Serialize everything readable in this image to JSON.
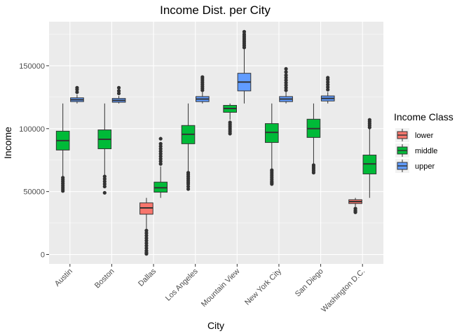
{
  "chart_data": {
    "type": "boxplot",
    "title": "Income Dist. per City",
    "xlabel": "City",
    "ylabel": "Income",
    "ylim": [
      -7500,
      185000
    ],
    "yticks": [
      0,
      50000,
      100000,
      150000
    ],
    "ytick_labels": [
      "0",
      "50000",
      "100000",
      "150000"
    ],
    "grid": true,
    "legend_position": "right",
    "legend_title": "Income Class",
    "categories": [
      "Austin",
      "Boston",
      "Dallas",
      "Los Angeles",
      "Mountain View",
      "New York City",
      "San Diego",
      "Washington D.C."
    ],
    "series": [
      {
        "name": "lower",
        "color": "#F8766D",
        "boxes": [
          null,
          null,
          {
            "min": 20000,
            "q1": 32000,
            "median": 37000,
            "q3": 41000,
            "max": 45000,
            "outliers": [
              19000,
              17000,
              15000,
              13000,
              11000,
              9000,
              7000,
              5000,
              3000,
              1500,
              500
            ]
          },
          null,
          null,
          null,
          null,
          {
            "min": 38000,
            "q1": 40500,
            "median": 42000,
            "q3": 43500,
            "max": 45000,
            "outliers": [
              36500,
              35000,
              34000,
              33500
            ]
          }
        ]
      },
      {
        "name": "middle",
        "color": "#00BA38",
        "boxes": [
          {
            "min": 62000,
            "q1": 83000,
            "median": 90500,
            "q3": 98000,
            "max": 120000,
            "outliers": [
              61000,
              59500,
              58000,
              56500,
              55000,
              53500,
              52000,
              50500
            ]
          },
          {
            "min": 63000,
            "q1": 84000,
            "median": 91500,
            "q3": 99000,
            "max": 120000,
            "outliers": [
              62000,
              60000,
              58000,
              56000,
              54000,
              49000
            ]
          },
          {
            "min": 45000,
            "q1": 49500,
            "median": 53000,
            "q3": 57500,
            "max": 70000,
            "outliers": [
              72000,
              74000,
              76000,
              78000,
              80000,
              82000,
              84000,
              86000,
              88000,
              92000
            ]
          },
          {
            "min": 66000,
            "q1": 88000,
            "median": 95500,
            "q3": 102500,
            "max": 120000,
            "outliers": [
              65000,
              63500,
              62000,
              60500,
              59000,
              57500,
              56000,
              54000,
              52000
            ]
          },
          {
            "min": 107000,
            "q1": 113000,
            "median": 116000,
            "q3": 118500,
            "max": 120000,
            "outliers": [
              105000,
              103500,
              102000,
              100500,
              99000,
              97500,
              96000
            ]
          },
          {
            "min": 68000,
            "q1": 89000,
            "median": 97000,
            "q3": 104000,
            "max": 120000,
            "outliers": [
              67000,
              65500,
              64000,
              62500,
              61000,
              59500,
              58000,
              57000,
              56000
            ]
          },
          {
            "min": 72000,
            "q1": 93000,
            "median": 100000,
            "q3": 107500,
            "max": 120000,
            "outliers": [
              71000,
              69500,
              68000,
              66500,
              65000
            ]
          },
          {
            "min": 45000,
            "q1": 64000,
            "median": 72000,
            "q3": 79000,
            "max": 100000,
            "outliers": [
              101000,
              102500,
              104000,
              105500,
              107000
            ]
          }
        ]
      },
      {
        "name": "upper",
        "color": "#619CFF",
        "boxes": [
          {
            "min": 120000,
            "q1": 121500,
            "median": 123000,
            "q3": 124500,
            "max": 127000,
            "outliers": [
              129000,
              131000,
              132500
            ]
          },
          {
            "min": 120000,
            "q1": 121000,
            "median": 122500,
            "q3": 124000,
            "max": 126000,
            "outliers": [
              128000,
              130000,
              132500
            ]
          },
          null,
          {
            "min": 120000,
            "q1": 121500,
            "median": 123500,
            "q3": 125500,
            "max": 129000,
            "outliers": [
              130500,
              132000,
              133500,
              135000,
              136500,
              138000,
              139500,
              141000
            ]
          },
          {
            "min": 120000,
            "q1": 130000,
            "median": 137000,
            "q3": 144000,
            "max": 163000,
            "outliers": [
              164500,
              166000,
              167500,
              169000,
              170500,
              172000,
              173500,
              175000,
              177000
            ]
          },
          {
            "min": 120000,
            "q1": 121500,
            "median": 123500,
            "q3": 125500,
            "max": 129000,
            "outliers": [
              130500,
              132500,
              134500,
              136500,
              138500,
              140500,
              142500,
              145000,
              147500
            ]
          },
          {
            "min": 120000,
            "q1": 122000,
            "median": 124000,
            "q3": 126000,
            "max": 129000,
            "outliers": [
              131000,
              133000,
              135000,
              137000,
              139000,
              140500
            ]
          },
          null
        ]
      }
    ]
  }
}
